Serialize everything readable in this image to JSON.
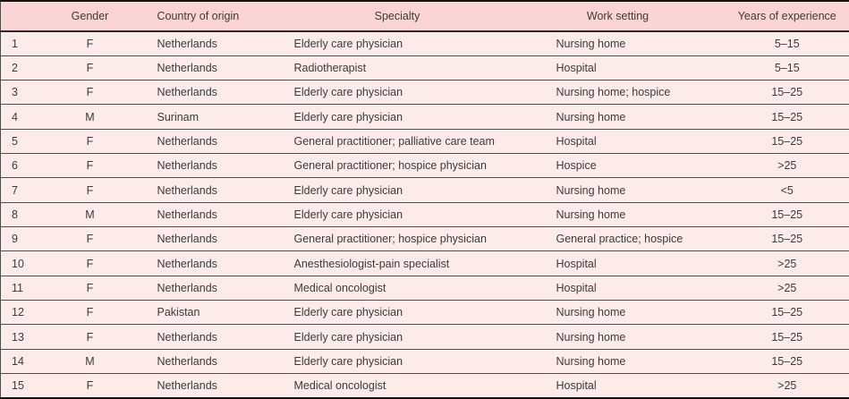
{
  "table": {
    "columns": [
      {
        "label": ""
      },
      {
        "label": "Gender"
      },
      {
        "label": "Country of origin"
      },
      {
        "label": "Specialty"
      },
      {
        "label": "Work setting"
      },
      {
        "label": "Years of experience"
      }
    ],
    "row_keys": [
      "id",
      "gender",
      "country",
      "specialty",
      "work_setting",
      "experience"
    ],
    "rows": [
      {
        "id": "1",
        "gender": "F",
        "country": "Netherlands",
        "specialty": "Elderly care physician",
        "work_setting": "Nursing home",
        "experience": "5–15"
      },
      {
        "id": "2",
        "gender": "F",
        "country": "Netherlands",
        "specialty": "Radiotherapist",
        "work_setting": "Hospital",
        "experience": "5–15"
      },
      {
        "id": "3",
        "gender": "F",
        "country": "Netherlands",
        "specialty": "Elderly care physician",
        "work_setting": "Nursing home; hospice",
        "experience": "15–25"
      },
      {
        "id": "4",
        "gender": "M",
        "country": "Surinam",
        "specialty": "Elderly care physician",
        "work_setting": "Nursing home",
        "experience": "15–25"
      },
      {
        "id": "5",
        "gender": "F",
        "country": "Netherlands",
        "specialty": "General practitioner; palliative care team",
        "work_setting": "Hospital",
        "experience": "15–25"
      },
      {
        "id": "6",
        "gender": "F",
        "country": "Netherlands",
        "specialty": "General practitioner; hospice physician",
        "work_setting": "Hospice",
        "experience": ">25"
      },
      {
        "id": "7",
        "gender": "F",
        "country": "Netherlands",
        "specialty": "Elderly care physician",
        "work_setting": "Nursing home",
        "experience": "<5"
      },
      {
        "id": "8",
        "gender": "M",
        "country": "Netherlands",
        "specialty": "Elderly care physician",
        "work_setting": "Nursing home",
        "experience": "15–25"
      },
      {
        "id": "9",
        "gender": "F",
        "country": "Netherlands",
        "specialty": "General practitioner; hospice physician",
        "work_setting": "General practice; hospice",
        "experience": "15–25"
      },
      {
        "id": "10",
        "gender": "F",
        "country": "Netherlands",
        "specialty": "Anesthesiologist-pain specialist",
        "work_setting": "Hospital",
        "experience": ">25"
      },
      {
        "id": "11",
        "gender": "F",
        "country": "Netherlands",
        "specialty": "Medical oncologist",
        "work_setting": "Hospital",
        "experience": ">25"
      },
      {
        "id": "12",
        "gender": "F",
        "country": "Pakistan",
        "specialty": "Elderly care physician",
        "work_setting": "Nursing home",
        "experience": "15–25"
      },
      {
        "id": "13",
        "gender": "F",
        "country": "Netherlands",
        "specialty": "Elderly care physician",
        "work_setting": "Nursing home",
        "experience": "15–25"
      },
      {
        "id": "14",
        "gender": "M",
        "country": "Netherlands",
        "specialty": "Elderly care physician",
        "work_setting": "Nursing home",
        "experience": "15–25"
      },
      {
        "id": "15",
        "gender": "F",
        "country": "Netherlands",
        "specialty": "Medical oncologist",
        "work_setting": "Hospital",
        "experience": ">25"
      }
    ]
  },
  "colors": {
    "header_bg": "#fbd4d5",
    "row_bg": "#fdebe9",
    "outer_border": "#141414",
    "side_border": "#4d4d4d",
    "header_rule": "#2a2a2a",
    "row_rule": "#515151",
    "text": "#3b3b3b"
  }
}
